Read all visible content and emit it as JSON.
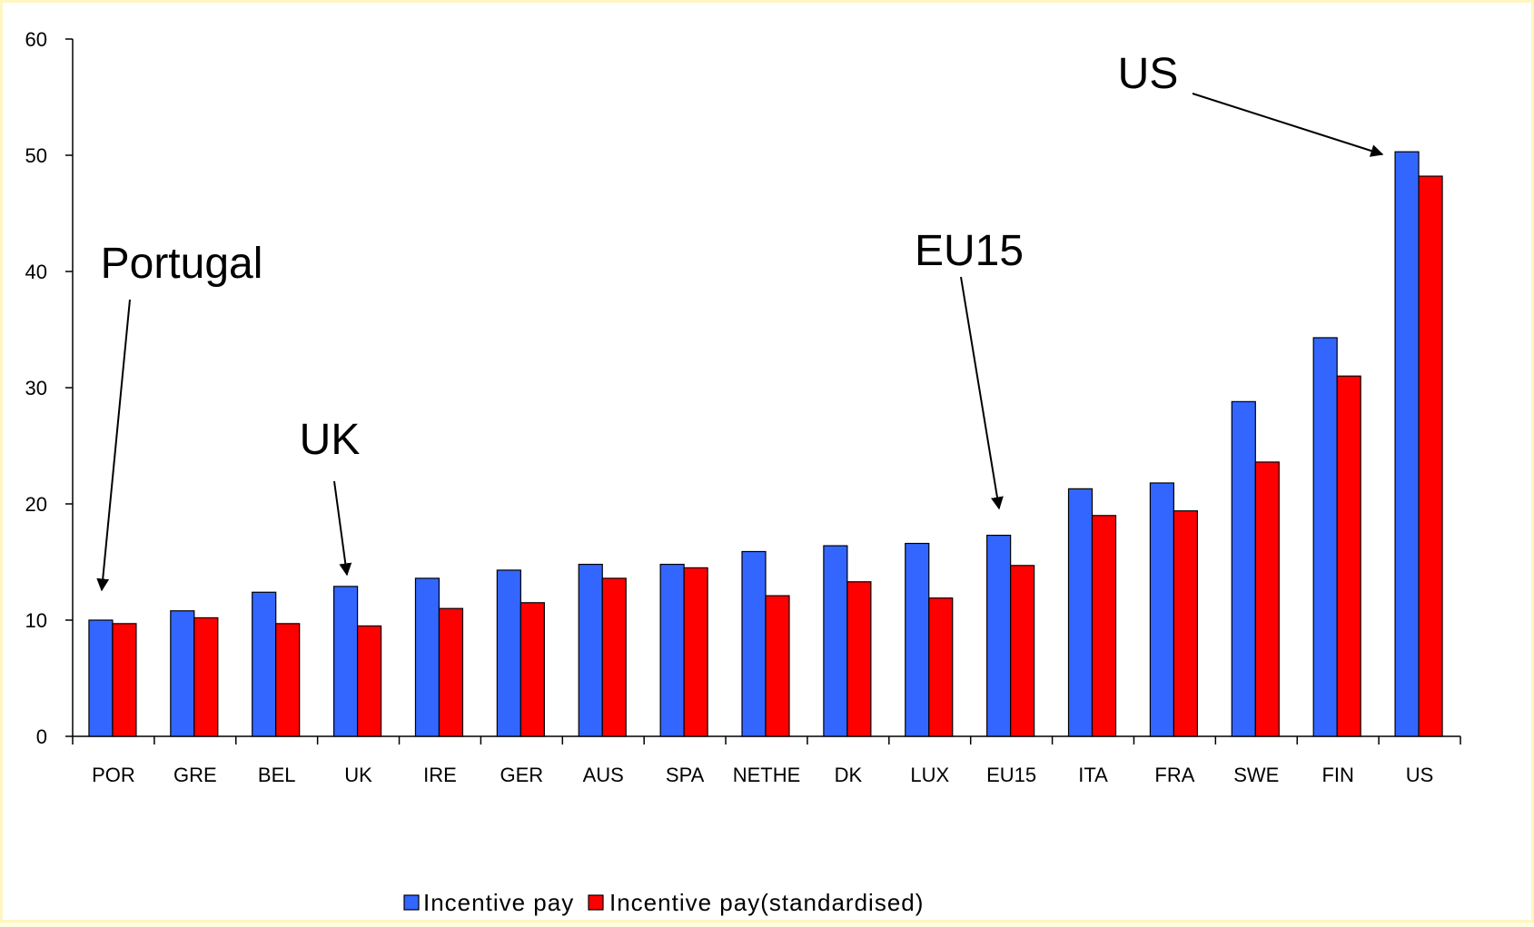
{
  "chart_data": {
    "type": "bar",
    "categories": [
      "POR",
      "GRE",
      "BEL",
      "UK",
      "IRE",
      "GER",
      "AUS",
      "SPA",
      "NETHE",
      "DK",
      "LUX",
      "EU15",
      "ITA",
      "FRA",
      "SWE",
      "FIN",
      "US"
    ],
    "series": [
      {
        "name": "Incentive pay",
        "color": "#3366ff",
        "values": [
          10.0,
          10.8,
          12.4,
          12.9,
          13.6,
          14.3,
          14.8,
          14.8,
          15.9,
          16.4,
          16.6,
          17.3,
          21.3,
          21.8,
          28.8,
          34.3,
          50.3
        ]
      },
      {
        "name": "Incentive pay(standardised)",
        "color": "#ff0000",
        "values": [
          9.7,
          10.2,
          9.7,
          9.5,
          11.0,
          11.5,
          13.6,
          14.5,
          12.1,
          13.3,
          11.9,
          14.7,
          19.0,
          19.4,
          23.6,
          31.0,
          48.2
        ]
      }
    ],
    "ylim": [
      0,
      60
    ],
    "yticks": [
      0,
      10,
      20,
      30,
      40,
      50,
      60
    ],
    "title": "",
    "xlabel": "",
    "ylabel": "",
    "legend_position": "bottom-center",
    "grid": false,
    "annotations": [
      {
        "text": "Portugal",
        "target_category": "POR"
      },
      {
        "text": "UK",
        "target_category": "UK"
      },
      {
        "text": "EU15",
        "target_category": "EU15"
      },
      {
        "text": "US",
        "target_category": "US"
      }
    ]
  }
}
